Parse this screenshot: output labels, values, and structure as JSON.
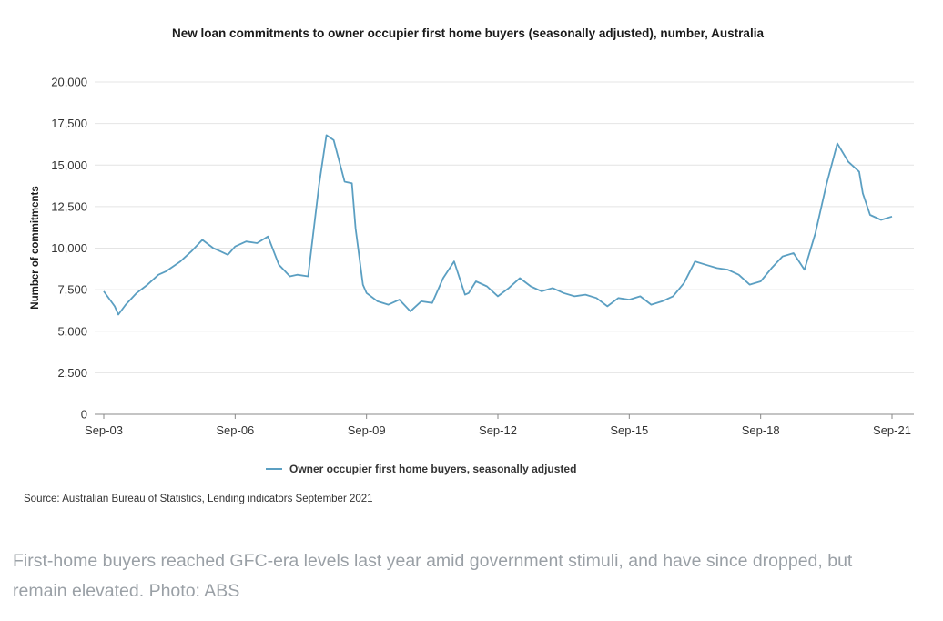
{
  "chart_data": {
    "type": "line",
    "title": "New loan commitments to owner occupier first home buyers (seasonally adjusted), number, Australia",
    "ylabel": "Number of commitments",
    "xlabel": "",
    "ylim": [
      0,
      20000
    ],
    "yticks": [
      "0",
      "2,500",
      "5,000",
      "7,500",
      "10,000",
      "12,500",
      "15,000",
      "17,500",
      "20,000"
    ],
    "xticks": [
      "Sep-03",
      "Sep-06",
      "Sep-09",
      "Sep-12",
      "Sep-15",
      "Sep-18",
      "Sep-21"
    ],
    "grid": true,
    "legend_position": "bottom",
    "color": "#5b9fc2",
    "x": [
      "2003-09",
      "2003-12",
      "2004-01",
      "2004-03",
      "2004-06",
      "2004-09",
      "2004-12",
      "2005-02",
      "2005-06",
      "2005-09",
      "2005-12",
      "2006-03",
      "2006-05",
      "2006-07",
      "2006-09",
      "2006-12",
      "2007-03",
      "2007-06",
      "2007-09",
      "2007-12",
      "2008-02",
      "2008-05",
      "2008-08",
      "2008-10",
      "2008-12",
      "2009-03",
      "2009-05",
      "2009-06",
      "2009-08",
      "2009-09",
      "2009-12",
      "2010-03",
      "2010-06",
      "2010-09",
      "2010-12",
      "2011-03",
      "2011-06",
      "2011-09",
      "2011-12",
      "2012-01",
      "2012-03",
      "2012-06",
      "2012-09",
      "2012-12",
      "2013-03",
      "2013-06",
      "2013-09",
      "2013-12",
      "2014-03",
      "2014-06",
      "2014-09",
      "2014-12",
      "2015-03",
      "2015-06",
      "2015-09",
      "2015-12",
      "2016-03",
      "2016-06",
      "2016-09",
      "2016-12",
      "2017-03",
      "2017-06",
      "2017-09",
      "2017-12",
      "2018-03",
      "2018-06",
      "2018-09",
      "2018-12",
      "2019-03",
      "2019-06",
      "2019-09",
      "2019-12",
      "2020-03",
      "2020-06",
      "2020-09",
      "2020-12",
      "2021-01",
      "2021-03",
      "2021-06",
      "2021-09"
    ],
    "series": [
      {
        "name": "Owner occupier first home buyers, seasonally adjusted",
        "values": [
          7400,
          6500,
          6000,
          6600,
          7300,
          7800,
          8400,
          8600,
          9200,
          9800,
          10500,
          10000,
          9800,
          9600,
          10100,
          10400,
          10300,
          10700,
          9000,
          8300,
          8400,
          8300,
          13800,
          16800,
          16500,
          14000,
          13900,
          11200,
          7800,
          7300,
          6800,
          6600,
          6900,
          6200,
          6800,
          6700,
          8200,
          9200,
          7200,
          7300,
          8000,
          7700,
          7100,
          7600,
          8200,
          7700,
          7400,
          7600,
          7300,
          7100,
          7200,
          7000,
          6500,
          7000,
          6900,
          7100,
          6600,
          6800,
          7100,
          7900,
          9200,
          9000,
          8800,
          8700,
          8400,
          7800,
          8000,
          8800,
          9500,
          9700,
          8700,
          10900,
          13800,
          16300,
          15200,
          14600,
          13300,
          12000,
          11700,
          11900
        ]
      }
    ]
  },
  "legend": {
    "label": "Owner occupier first home buyers, seasonally adjusted"
  },
  "source": "Source: Australian Bureau of Statistics, Lending indicators September 2021",
  "caption": "First-home buyers reached GFC-era levels last year amid government stimuli, and have since dropped, but remain elevated. Photo: ABS"
}
